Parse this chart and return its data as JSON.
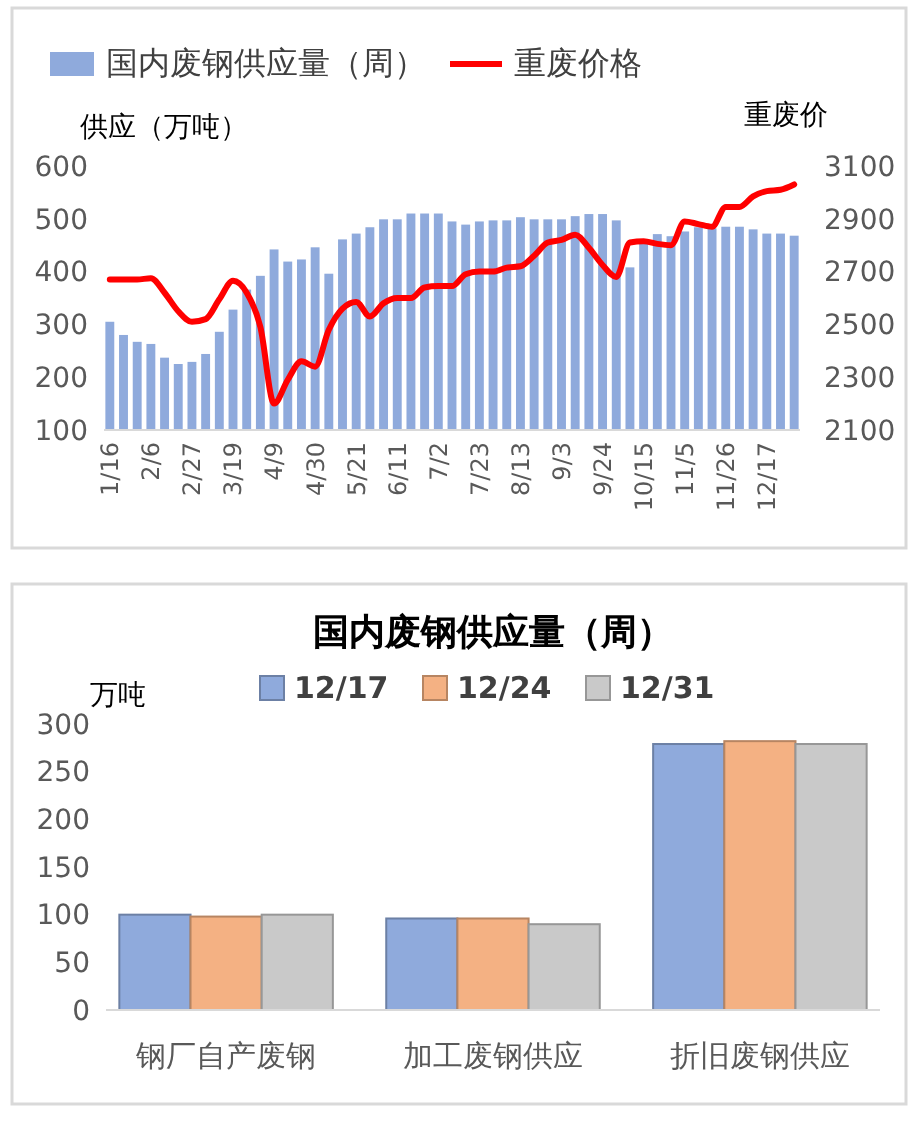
{
  "chart_data": [
    {
      "type": "bar",
      "ylabel": "供应（万吨）",
      "y2label": "重废价",
      "categories": [
        "1/16",
        null,
        null,
        "2/6",
        null,
        null,
        "2/27",
        null,
        null,
        "3/19",
        null,
        null,
        "4/9",
        null,
        null,
        "4/30",
        null,
        null,
        "5/21",
        null,
        null,
        "6/11",
        null,
        null,
        "7/2",
        null,
        null,
        "7/23",
        null,
        null,
        "8/13",
        null,
        null,
        "9/3",
        null,
        null,
        "9/24",
        null,
        null,
        "10/15",
        null,
        null,
        "11/5",
        null,
        null,
        "11/26",
        null,
        null,
        "12/17",
        null,
        null
      ],
      "series": [
        {
          "name": "国内废钢供应量（周）",
          "color": "#8faadc",
          "values": [
            305,
            280,
            267,
            263,
            237,
            225,
            229,
            244,
            286,
            328,
            366,
            392,
            442,
            419,
            423,
            446,
            396,
            461,
            472,
            484,
            499,
            499,
            510,
            510,
            510,
            495,
            489,
            495,
            497,
            497,
            503,
            499,
            499,
            499,
            505,
            509,
            509,
            497,
            408,
            459,
            471,
            467,
            476,
            484,
            482,
            485,
            485,
            480,
            472,
            472,
            468
          ]
        },
        {
          "name": "重废价格",
          "type": "line",
          "axis": "y2",
          "color": "#ff0000",
          "values": [
            2670,
            2670,
            2670,
            2675,
            2620,
            2550,
            2510,
            2520,
            2595,
            2665,
            2620,
            2490,
            2200,
            2290,
            2360,
            2340,
            2480,
            2560,
            2585,
            2530,
            2580,
            2600,
            2600,
            2640,
            2645,
            2645,
            2690,
            2700,
            2700,
            2715,
            2720,
            2760,
            2810,
            2820,
            2840,
            2790,
            2725,
            2680,
            2810,
            2815,
            2805,
            2800,
            2890,
            2880,
            2870,
            2945,
            2945,
            2985,
            3005,
            3010,
            3030
          ]
        }
      ],
      "ylim": [
        100,
        600
      ],
      "yticks": [
        100,
        200,
        300,
        400,
        500,
        600
      ],
      "y2lim": [
        2100,
        3100
      ],
      "y2ticks": [
        2100,
        2300,
        2500,
        2700,
        2900,
        3100
      ],
      "legend": "top",
      "grid": false
    },
    {
      "type": "bar",
      "title": "国内废钢供应量（周）",
      "ylabel": "万吨",
      "categories": [
        "钢厂自产废钢",
        "加工废钢供应",
        "折旧废钢供应"
      ],
      "series": [
        {
          "name": "12/17",
          "color": "#8faadc",
          "values": [
            100,
            96,
            279
          ]
        },
        {
          "name": "12/24",
          "color": "#f4b183",
          "values": [
            98,
            96,
            282
          ]
        },
        {
          "name": "12/31",
          "color": "#c9c9c9",
          "values": [
            100,
            90,
            279
          ]
        }
      ],
      "ylim": [
        0,
        300
      ],
      "yticks": [
        0,
        50,
        100,
        150,
        200,
        250,
        300
      ],
      "legend": "top",
      "grid": false
    }
  ]
}
